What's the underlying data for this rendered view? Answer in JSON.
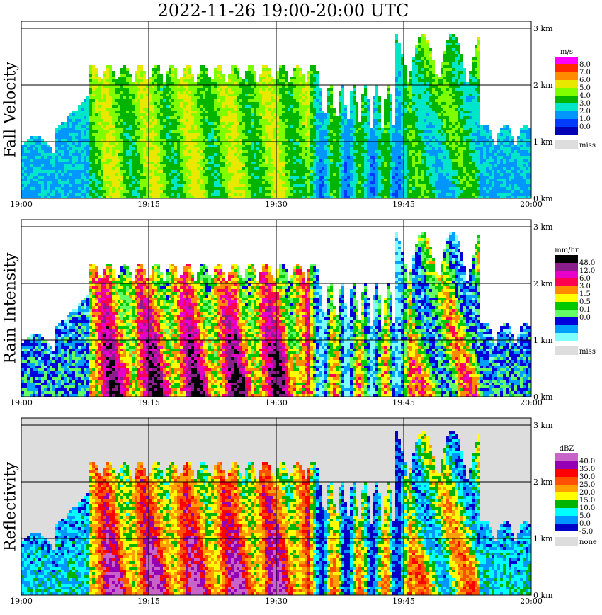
{
  "title": "2022-11-26   19:00-20:00 UTC",
  "chart_data": [
    {
      "type": "heatmap",
      "title": "Fall Velocity",
      "x_ticks": [
        "19:00",
        "19:15",
        "19:30",
        "19:45",
        "20:00"
      ],
      "y_ticks": [
        "0 km",
        "1 km",
        "2 km",
        "3 km"
      ],
      "xlim": [
        "19:00",
        "20:00"
      ],
      "ylim_km": [
        0,
        3.2
      ],
      "legend": {
        "unit": "m/s",
        "levels": [
          "8.0",
          "7.0",
          "6.0",
          "5.0",
          "4.0",
          "3.0",
          "2.0",
          "1.0",
          "0.0"
        ],
        "colors": [
          "#ff00ff",
          "#ff2a00",
          "#ff8c00",
          "#e8e800",
          "#80ff00",
          "#00b400",
          "#00e6c8",
          "#0096ff",
          "#003cff",
          "#0000b4"
        ],
        "missing_label": "miss",
        "missing_color": "#dddddd"
      },
      "background": "#ffffff"
    },
    {
      "type": "heatmap",
      "title": "Rain Intensity",
      "x_ticks": [
        "19:00",
        "19:15",
        "19:30",
        "19:45",
        "20:00"
      ],
      "y_ticks": [
        "0 km",
        "1 km",
        "2 km",
        "3 km"
      ],
      "xlim": [
        "19:00",
        "20:00"
      ],
      "ylim_km": [
        0,
        3.2
      ],
      "legend": {
        "unit": "mm/hr",
        "levels": [
          "48.0",
          "12.0",
          "6.0",
          "3.0",
          "1.5",
          "0.5",
          "0.1",
          "0.0"
        ],
        "colors": [
          "#000000",
          "#8c1e8c",
          "#e600c8",
          "#ff0050",
          "#ff8c00",
          "#ffff00",
          "#00c800",
          "#64ff64",
          "#0000dc",
          "#00a0ff",
          "#80ffff"
        ],
        "missing_label": "miss",
        "missing_color": "#dddddd"
      },
      "background": "#ffffff"
    },
    {
      "type": "heatmap",
      "title": "Reflectivity",
      "x_ticks": [
        "19:00",
        "19:15",
        "19:30",
        "19:45",
        "20:00"
      ],
      "y_ticks": [
        "0 km",
        "1 km",
        "2 km",
        "3 km"
      ],
      "xlim": [
        "19:00",
        "20:00"
      ],
      "ylim_km": [
        0,
        3.2
      ],
      "legend": {
        "unit": "dBZ",
        "levels": [
          "40.0",
          "35.0",
          "30.0",
          "25.0",
          "20.0",
          "15.0",
          "10.0",
          "5.0",
          "0.0",
          "-5.0"
        ],
        "colors": [
          "#c864c8",
          "#9600b4",
          "#ff0000",
          "#ff5000",
          "#ffa000",
          "#ffff00",
          "#00b400",
          "#00ffff",
          "#0096ff",
          "#0000c8"
        ],
        "missing_label": "none",
        "missing_color": "#dddddd"
      },
      "background": "#dddddd"
    }
  ]
}
